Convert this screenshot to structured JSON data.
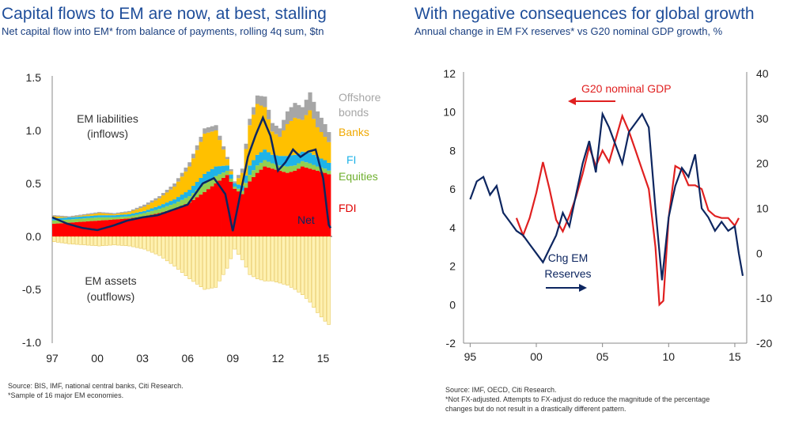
{
  "left": {
    "title": "Capital flows to EM are now, at best, stalling",
    "subtitle": "Net capital flow into EM* from balance of payments, rolling 4q sum, $tn",
    "source": "Source: BIS, IMF, national central banks, Citi Research.",
    "footnote": "*Sample of  16 major EM economies."
  },
  "right": {
    "title": "With negative consequences for global growth",
    "subtitle": "Annual change in EM FX reserves* vs G20 nominal GDP growth, %",
    "source": "Source: IMF, OECD, Citi Research.",
    "footnote1": "*Not FX-adjusted. Attempts to FX-adjust do reduce the magnitude of the percentage",
    "footnote2": "changes but do not result in a drastically different pattern."
  },
  "colors": {
    "title": "#1f4e9a",
    "fdi": "#ff0000",
    "equities": "#92d050",
    "fi": "#1fb3e8",
    "banks": "#ffc000",
    "offshore": "#a6a6a6",
    "net": "#0d2660",
    "assets_fill": "#fff2b3",
    "assets_stroke": "#e8c85a",
    "g20": "#e02020",
    "reserves": "#0d2660"
  },
  "chart_data": [
    {
      "type": "bar",
      "subtype": "stacked",
      "y_range": [
        -1.0,
        1.5
      ],
      "y_ticks": [
        "1.5",
        "1.0",
        "0.5",
        "0.0",
        "-0.5",
        "-1.0"
      ],
      "x_range": [
        1997,
        2015.5
      ],
      "x_ticks": [
        "97",
        "00",
        "03",
        "06",
        "09",
        "12",
        "15"
      ],
      "series_labels": {
        "offshore": "Offshore bonds",
        "banks": "Banks",
        "fi": "FI",
        "equities": "Equities",
        "fdi": "FDI",
        "net": "Net"
      },
      "annotations": {
        "liabilities_1": "EM liabilities",
        "liabilities_2": "(inflows)",
        "assets_1": "EM assets",
        "assets_2": "(outflows)",
        "offshore_1": "Offshore",
        "offshore_2": "bonds",
        "banks": "Banks",
        "fi": "FI",
        "equities": "Equities",
        "fdi": "FDI",
        "net": "Net"
      },
      "x": [
        1997,
        1998,
        1999,
        2000,
        2001,
        2002,
        2003,
        2004,
        2005,
        2006,
        2007,
        2007.75,
        2008.5,
        2009,
        2009.5,
        2010,
        2010.5,
        2011,
        2011.5,
        2012,
        2012.5,
        2013,
        2013.5,
        2014,
        2014.5,
        2015,
        2015.4
      ],
      "fdi": [
        0.12,
        0.13,
        0.14,
        0.15,
        0.16,
        0.17,
        0.19,
        0.22,
        0.26,
        0.32,
        0.42,
        0.5,
        0.58,
        0.45,
        0.4,
        0.52,
        0.6,
        0.66,
        0.64,
        0.62,
        0.6,
        0.62,
        0.66,
        0.64,
        0.62,
        0.6,
        0.58
      ],
      "equities": [
        0.03,
        0.03,
        0.03,
        0.03,
        0.02,
        0.02,
        0.03,
        0.04,
        0.05,
        0.06,
        0.08,
        0.07,
        0.04,
        0.02,
        0.03,
        0.06,
        0.07,
        0.06,
        0.05,
        0.05,
        0.06,
        0.05,
        0.05,
        0.05,
        0.04,
        0.04,
        0.03
      ],
      "fi": [
        0.02,
        0.02,
        0.02,
        0.02,
        0.02,
        0.02,
        0.02,
        0.03,
        0.04,
        0.06,
        0.09,
        0.09,
        0.05,
        0.03,
        0.05,
        0.09,
        0.1,
        0.1,
        0.08,
        0.09,
        0.1,
        0.1,
        0.09,
        0.1,
        0.09,
        0.08,
        0.07
      ],
      "banks": [
        0.02,
        0.0,
        0.01,
        0.02,
        0.01,
        0.02,
        0.04,
        0.07,
        0.12,
        0.22,
        0.38,
        0.34,
        0.06,
        0.0,
        0.12,
        0.38,
        0.48,
        0.4,
        0.22,
        0.18,
        0.3,
        0.35,
        0.3,
        0.4,
        0.28,
        0.22,
        0.18
      ],
      "offshore": [
        0.01,
        0.01,
        0.01,
        0.01,
        0.01,
        0.01,
        0.02,
        0.02,
        0.03,
        0.04,
        0.05,
        0.05,
        0.02,
        0.02,
        0.04,
        0.06,
        0.08,
        0.1,
        0.08,
        0.08,
        0.12,
        0.14,
        0.12,
        0.17,
        0.15,
        0.12,
        0.08
      ],
      "assets": [
        -0.05,
        -0.07,
        -0.08,
        -0.09,
        -0.08,
        -0.09,
        -0.12,
        -0.18,
        -0.28,
        -0.4,
        -0.5,
        -0.48,
        -0.3,
        -0.12,
        -0.22,
        -0.36,
        -0.4,
        -0.42,
        -0.42,
        -0.44,
        -0.46,
        -0.5,
        -0.55,
        -0.62,
        -0.72,
        -0.8,
        -0.85
      ],
      "net": [
        0.18,
        0.12,
        0.08,
        0.06,
        0.1,
        0.15,
        0.18,
        0.2,
        0.25,
        0.3,
        0.5,
        0.55,
        0.4,
        0.05,
        0.4,
        0.75,
        0.95,
        1.12,
        0.95,
        0.62,
        0.7,
        0.82,
        0.75,
        0.8,
        0.82,
        0.55,
        0.08
      ]
    },
    {
      "type": "line",
      "x_range": [
        1994.5,
        2015.9
      ],
      "x_ticks": [
        "95",
        "00",
        "05",
        "10",
        "15"
      ],
      "y_left_range": [
        -2,
        12
      ],
      "y_left_ticks": [
        "12",
        "10",
        "8",
        "6",
        "4",
        "2",
        "0",
        "-2"
      ],
      "y_right_range": [
        -20,
        40
      ],
      "y_right_ticks": [
        "40",
        "30",
        "20",
        "10",
        "0",
        "-10",
        "-20"
      ],
      "annotations": {
        "g20": "G20 nominal GDP",
        "reserves_1": "Chg EM",
        "reserves_2": "Reserves"
      },
      "series": [
        {
          "name": "G20 nominal GDP",
          "axis": "left",
          "x": [
            1998.5,
            1999,
            1999.5,
            2000,
            2000.5,
            2001,
            2001.5,
            2002,
            2002.5,
            2003,
            2003.5,
            2004,
            2004.5,
            2005,
            2005.5,
            2006,
            2006.5,
            2007,
            2007.5,
            2008,
            2008.5,
            2009,
            2009.3,
            2009.6,
            2010,
            2010.5,
            2011,
            2011.5,
            2012,
            2012.5,
            2013,
            2013.5,
            2014,
            2014.5,
            2015,
            2015.3
          ],
          "values": [
            4.5,
            3.6,
            4.5,
            5.8,
            7.4,
            6.0,
            4.4,
            3.8,
            4.6,
            5.6,
            6.8,
            8.2,
            7.2,
            8.0,
            7.4,
            8.6,
            9.8,
            9.0,
            8.0,
            7.0,
            6.0,
            3.0,
            0.0,
            0.2,
            4.5,
            7.2,
            7.0,
            6.2,
            6.2,
            6.0,
            4.9,
            4.6,
            4.5,
            4.5,
            4.1,
            4.5
          ]
        },
        {
          "name": "Chg EM Reserves",
          "axis": "right",
          "x": [
            1995,
            1995.5,
            1996,
            1996.5,
            1997,
            1997.5,
            1998,
            1998.5,
            1999,
            1999.5,
            2000,
            2000.5,
            2001,
            2001.5,
            2002,
            2002.5,
            2003,
            2003.5,
            2004,
            2004.5,
            2005,
            2005.5,
            2006,
            2006.5,
            2007,
            2007.5,
            2008,
            2008.5,
            2009,
            2009.5,
            2010,
            2010.5,
            2011,
            2011.5,
            2012,
            2012.5,
            2013,
            2013.5,
            2014,
            2014.5,
            2015,
            2015.3,
            2015.6
          ],
          "values": [
            12,
            16,
            17,
            13,
            15,
            9,
            7,
            5,
            4,
            2,
            0,
            -2,
            1,
            4,
            9,
            6,
            13,
            20,
            25,
            18,
            31,
            28,
            24,
            20,
            27,
            29,
            31,
            28,
            10,
            -6,
            8,
            15,
            19,
            17,
            22,
            10,
            8,
            5,
            7,
            5,
            6,
            0,
            -5
          ]
        }
      ]
    }
  ]
}
